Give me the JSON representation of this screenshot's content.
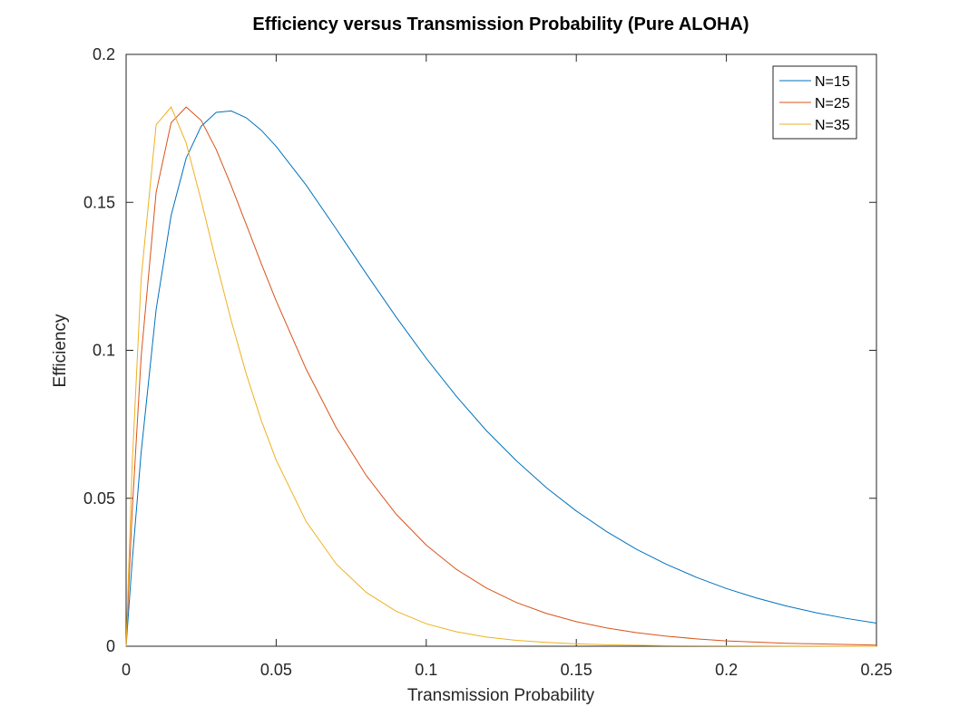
{
  "chart_data": {
    "type": "line",
    "title": "Efficiency versus Transmission Probability (Pure ALOHA)",
    "xlabel": "Transmission Probability",
    "ylabel": "Efficiency",
    "xlim": [
      0,
      0.25
    ],
    "ylim": [
      0,
      0.2
    ],
    "xticks": [
      0,
      0.05,
      0.1,
      0.15,
      0.2,
      0.25
    ],
    "xtick_labels": [
      "0",
      "0.05",
      "0.1",
      "0.15",
      "0.2",
      "0.25"
    ],
    "yticks": [
      0,
      0.05,
      0.1,
      0.15,
      0.2
    ],
    "ytick_labels": [
      "0",
      "0.05",
      "0.1",
      "0.15",
      "0.2"
    ],
    "grid": false,
    "legend_position": "top-right",
    "series": [
      {
        "name": "N=15",
        "color": "#0072BD",
        "x": [
          0,
          0.002,
          0.005,
          0.01,
          0.015,
          0.02,
          0.025,
          0.03,
          0.035,
          0.04,
          0.045,
          0.05,
          0.06,
          0.07,
          0.08,
          0.09,
          0.1,
          0.11,
          0.12,
          0.13,
          0.14,
          0.15,
          0.16,
          0.17,
          0.18,
          0.19,
          0.2,
          0.21,
          0.22,
          0.23,
          0.24,
          0.25
        ],
        "y": [
          0,
          0.0284,
          0.0654,
          0.1138,
          0.1456,
          0.1649,
          0.1757,
          0.1804,
          0.1809,
          0.1786,
          0.1744,
          0.1689,
          0.1558,
          0.141,
          0.1259,
          0.1112,
          0.0973,
          0.0845,
          0.0729,
          0.0627,
          0.0536,
          0.0457,
          0.0388,
          0.0328,
          0.0277,
          0.0233,
          0.0195,
          0.0163,
          0.0136,
          0.0113,
          0.0094,
          0.0078
        ]
      },
      {
        "name": "N=25",
        "color": "#D95319",
        "x": [
          0,
          0.002,
          0.005,
          0.01,
          0.015,
          0.02,
          0.025,
          0.03,
          0.035,
          0.04,
          0.045,
          0.05,
          0.06,
          0.07,
          0.08,
          0.09,
          0.1,
          0.11,
          0.12,
          0.13,
          0.14,
          0.15,
          0.16,
          0.17,
          0.18,
          0.19,
          0.2,
          0.22,
          0.25
        ],
        "y": [
          0,
          0.0453,
          0.0977,
          0.1534,
          0.1769,
          0.1822,
          0.1777,
          0.1679,
          0.1557,
          0.1426,
          0.1294,
          0.1167,
          0.0936,
          0.0739,
          0.0577,
          0.0446,
          0.0342,
          0.026,
          0.0197,
          0.0148,
          0.0111,
          0.0083,
          0.0062,
          0.0046,
          0.0034,
          0.0025,
          0.0018,
          0.001,
          0.0004
        ]
      },
      {
        "name": "N=35",
        "color": "#EDB120",
        "x": [
          0,
          0.002,
          0.005,
          0.01,
          0.015,
          0.02,
          0.025,
          0.03,
          0.035,
          0.04,
          0.045,
          0.05,
          0.06,
          0.07,
          0.08,
          0.09,
          0.1,
          0.11,
          0.12,
          0.13,
          0.14,
          0.15,
          0.16,
          0.18,
          0.2,
          0.22,
          0.25
        ],
        "y": [
          0,
          0.0609,
          0.1241,
          0.1762,
          0.1822,
          0.1701,
          0.1507,
          0.1299,
          0.1101,
          0.0921,
          0.0764,
          0.0629,
          0.0421,
          0.0278,
          0.0182,
          0.0118,
          0.0076,
          0.0049,
          0.0031,
          0.002,
          0.0013,
          0.0008,
          0.0005,
          0.0002,
          0.0001,
          3e-05,
          0.0
        ]
      }
    ]
  }
}
